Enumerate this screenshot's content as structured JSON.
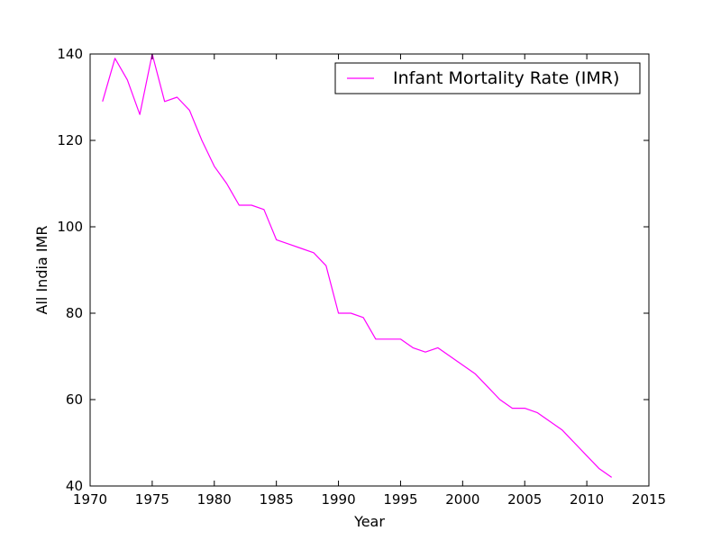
{
  "chart_data": {
    "type": "line",
    "xlabel": "Year",
    "ylabel": "All India IMR",
    "xlim": [
      1970,
      2015
    ],
    "ylim": [
      40,
      140
    ],
    "xticks": [
      1970,
      1975,
      1980,
      1985,
      1990,
      1995,
      2000,
      2005,
      2010,
      2015
    ],
    "yticks": [
      40,
      60,
      80,
      100,
      120,
      140
    ],
    "grid": false,
    "legend_position": "top-right",
    "series": [
      {
        "name": "Infant Mortality Rate (IMR)",
        "color": "#ff00ff",
        "x": [
          1971,
          1972,
          1973,
          1974,
          1975,
          1976,
          1977,
          1978,
          1979,
          1980,
          1981,
          1982,
          1983,
          1984,
          1985,
          1986,
          1987,
          1988,
          1989,
          1990,
          1991,
          1992,
          1993,
          1994,
          1995,
          1996,
          1997,
          1998,
          1999,
          2000,
          2001,
          2002,
          2003,
          2004,
          2005,
          2006,
          2007,
          2008,
          2009,
          2010,
          2011,
          2012
        ],
        "y": [
          129,
          139,
          134,
          126,
          140,
          129,
          130,
          127,
          120,
          114,
          110,
          105,
          105,
          104,
          97,
          96,
          95,
          94,
          91,
          80,
          80,
          79,
          74,
          74,
          74,
          72,
          71,
          72,
          70,
          68,
          66,
          63,
          60,
          58,
          58,
          57,
          55,
          53,
          50,
          47,
          44,
          42
        ]
      }
    ]
  }
}
